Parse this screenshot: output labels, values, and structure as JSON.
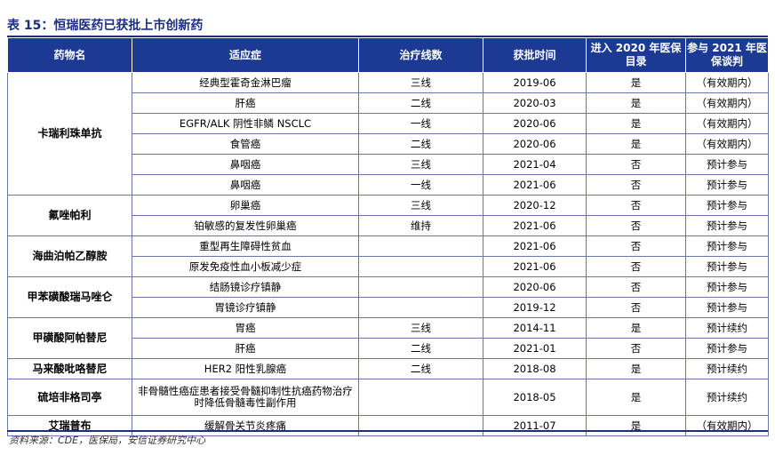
{
  "caption": "表 15：恒瑞医药已获批上市创新药",
  "headers": {
    "drug": "药物名",
    "indication": "适应症",
    "line": "治疗线数",
    "approval": "获批时间",
    "nrdl2020": "进入 2020 年医保目录",
    "nrdl2021": "参与 2021 年医保谈判"
  },
  "groups": [
    {
      "drug": "卡瑞利珠单抗",
      "rows": [
        {
          "indication": "经典型霍奇金淋巴瘤",
          "line": "三线",
          "date": "2019-06",
          "nrdl2020": "是",
          "nrdl2021": "（有效期内）"
        },
        {
          "indication": "肝癌",
          "line": "二线",
          "date": "2020-03",
          "nrdl2020": "是",
          "nrdl2021": "（有效期内）"
        },
        {
          "indication": "EGFR/ALK 阴性非鳞 NSCLC",
          "line": "一线",
          "date": "2020-06",
          "nrdl2020": "是",
          "nrdl2021": "（有效期内）"
        },
        {
          "indication": "食管癌",
          "line": "二线",
          "date": "2020-06",
          "nrdl2020": "是",
          "nrdl2021": "（有效期内）"
        },
        {
          "indication": "鼻咽癌",
          "line": "三线",
          "date": "2021-04",
          "nrdl2020": "否",
          "nrdl2021": "预计参与"
        },
        {
          "indication": "鼻咽癌",
          "line": "一线",
          "date": "2021-06",
          "nrdl2020": "否",
          "nrdl2021": "预计参与"
        }
      ]
    },
    {
      "drug": "氟唑帕利",
      "rows": [
        {
          "indication": "卵巢癌",
          "line": "三线",
          "date": "2020-12",
          "nrdl2020": "否",
          "nrdl2021": "预计参与"
        },
        {
          "indication": "铂敏感的复发性卵巢癌",
          "line": "维持",
          "date": "2021-06",
          "nrdl2020": "否",
          "nrdl2021": "预计参与"
        }
      ]
    },
    {
      "drug": "海曲泊帕乙醇胺",
      "rows": [
        {
          "indication": "重型再生障碍性贫血",
          "line": "",
          "date": "2021-06",
          "nrdl2020": "否",
          "nrdl2021": "预计参与"
        },
        {
          "indication": "原发免疫性血小板减少症",
          "line": "",
          "date": "2021-06",
          "nrdl2020": "否",
          "nrdl2021": "预计参与"
        }
      ]
    },
    {
      "drug": "甲苯磺酸瑞马唑仑",
      "rows": [
        {
          "indication": "结肠镜诊疗镇静",
          "line": "",
          "date": "2020-06",
          "nrdl2020": "否",
          "nrdl2021": "预计参与"
        },
        {
          "indication": "胃镜诊疗镇静",
          "line": "",
          "date": "2019-12",
          "nrdl2020": "否",
          "nrdl2021": "预计参与"
        }
      ]
    },
    {
      "drug": "甲磺酸阿帕替尼",
      "rows": [
        {
          "indication": "胃癌",
          "line": "三线",
          "date": "2014-11",
          "nrdl2020": "是",
          "nrdl2021": "预计续约"
        },
        {
          "indication": "肝癌",
          "line": "二线",
          "date": "2021-01",
          "nrdl2020": "否",
          "nrdl2021": "预计参与"
        }
      ]
    },
    {
      "drug": "马来酸吡咯替尼",
      "rows": [
        {
          "indication": "HER2 阳性乳腺癌",
          "line": "二线",
          "date": "2018-08",
          "nrdl2020": "是",
          "nrdl2021": "预计续约"
        }
      ]
    },
    {
      "drug": "硫培非格司亭",
      "rows": [
        {
          "indication": "非骨髓性癌症患者接受骨髓抑制性抗癌药物治疗时降低骨髓毒性副作用",
          "line": "",
          "date": "2018-05",
          "nrdl2020": "是",
          "nrdl2021": "预计续约",
          "tall": true
        }
      ]
    },
    {
      "drug": "艾瑞普布",
      "rows": [
        {
          "indication": "缓解骨关节炎疼痛",
          "line": "",
          "date": "2011-07",
          "nrdl2020": "是",
          "nrdl2021": "（有效期内）"
        }
      ]
    }
  ],
  "source": "资料来源：CDE，医保局，安信证券研究中心",
  "colors": {
    "header_bg": "#1c3a94",
    "title": "#1c2f7e",
    "rule": "#1c2f7e"
  }
}
